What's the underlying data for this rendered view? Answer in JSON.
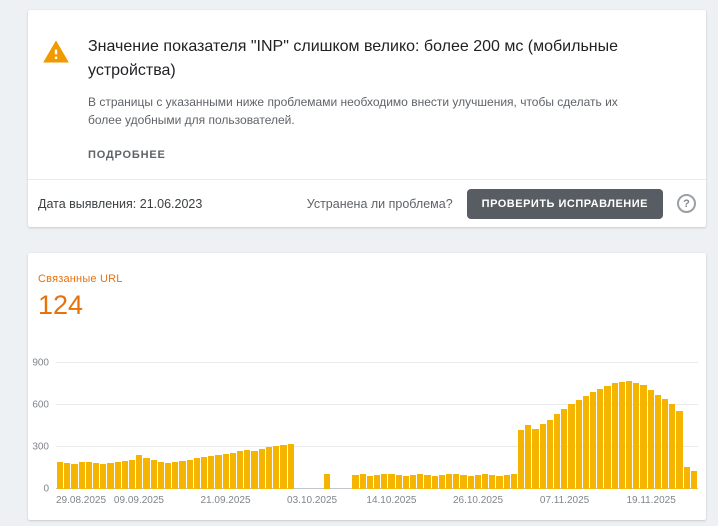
{
  "issue_card": {
    "title": "Значение показателя \"INP\" слишком велико: более 200 мс (мобильные устройства)",
    "description": "В страницы с указанными ниже проблемами необходимо внести улучшения, чтобы сделать их более удобными для пользователей.",
    "details_label": "ПОДРОБНЕЕ",
    "detected_label": "Дата выявления: 21.06.2023",
    "fixed_question": "Устранена ли проблема?",
    "validate_button": "ПРОВЕРИТЬ ИСПРАВЛЕНИЕ",
    "help_icon": "?"
  },
  "related_urls": {
    "label": "Связанные URL",
    "count": "124"
  },
  "colors": {
    "accent_orange": "#E8710A",
    "bar_amber": "#F4B400",
    "warning_icon": "#F29900",
    "validate_button_bg": "#575d62"
  },
  "chart_data": {
    "type": "bar",
    "title": "Связанные URL",
    "xlabel": "",
    "ylabel": "",
    "ylim": [
      0,
      900
    ],
    "yticks": [
      0,
      300,
      600,
      900
    ],
    "grid": true,
    "legend": false,
    "bar_color": "#F4B400",
    "x_tick_labels": [
      "29.08.2025",
      "09.09.2025",
      "21.09.2025",
      "03.10.2025",
      "14.10.2025",
      "26.10.2025",
      "07.11.2025",
      "19.11.2025"
    ],
    "x_tick_indices": [
      0,
      11,
      23,
      35,
      46,
      58,
      70,
      82
    ],
    "values": [
      190,
      185,
      180,
      190,
      195,
      185,
      180,
      185,
      195,
      200,
      210,
      240,
      225,
      210,
      195,
      185,
      190,
      200,
      210,
      220,
      230,
      235,
      245,
      250,
      260,
      270,
      280,
      275,
      285,
      300,
      310,
      315,
      320,
      0,
      0,
      0,
      0,
      110,
      0,
      0,
      0,
      100,
      105,
      95,
      100,
      110,
      105,
      100,
      95,
      100,
      105,
      100,
      95,
      100,
      105,
      110,
      100,
      95,
      100,
      105,
      100,
      95,
      100,
      105,
      420,
      455,
      430,
      465,
      495,
      535,
      570,
      605,
      635,
      665,
      690,
      715,
      735,
      755,
      765,
      775,
      760,
      745,
      705,
      675,
      645,
      605,
      560,
      160,
      130
    ]
  }
}
